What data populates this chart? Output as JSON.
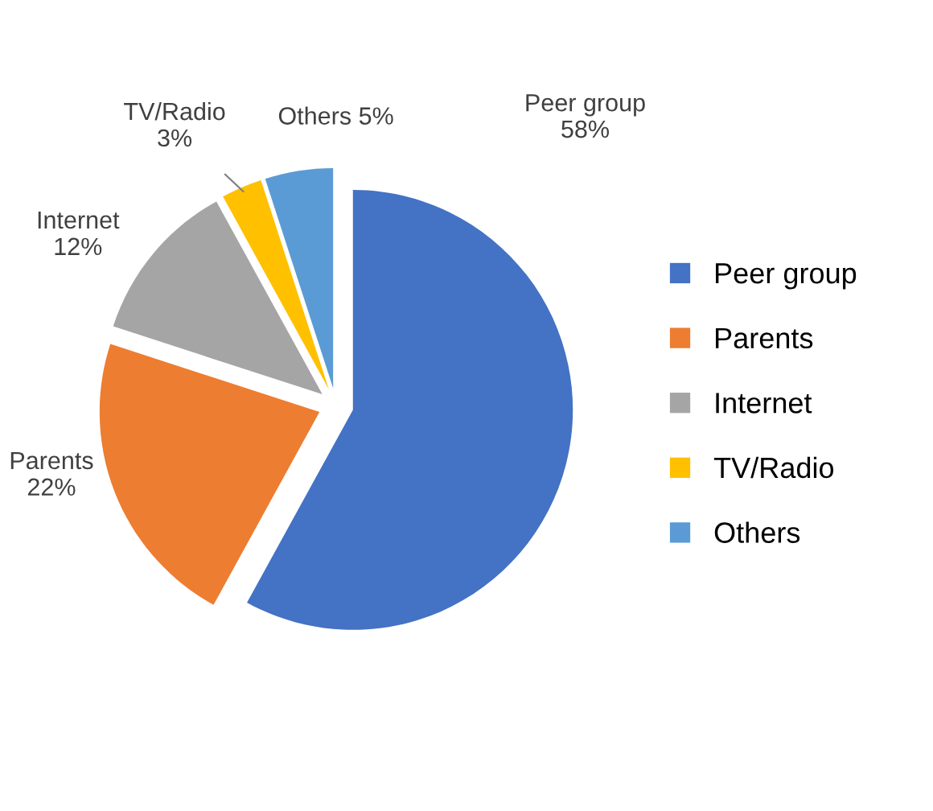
{
  "chart_data": {
    "type": "pie",
    "categories": [
      "Peer group",
      "Parents",
      "Internet",
      "TV/Radio",
      "Others"
    ],
    "values": [
      58,
      22,
      12,
      3,
      5
    ],
    "colors": [
      "#4472c4",
      "#ed7d31",
      "#a5a5a5",
      "#ffc000",
      "#5b9bd5"
    ],
    "value_labels": [
      "Peer group\n58%",
      "Parents\n22%",
      "Internet\n12%",
      "TV/Radio\n3%",
      "Others 5%"
    ],
    "legend": "right"
  }
}
